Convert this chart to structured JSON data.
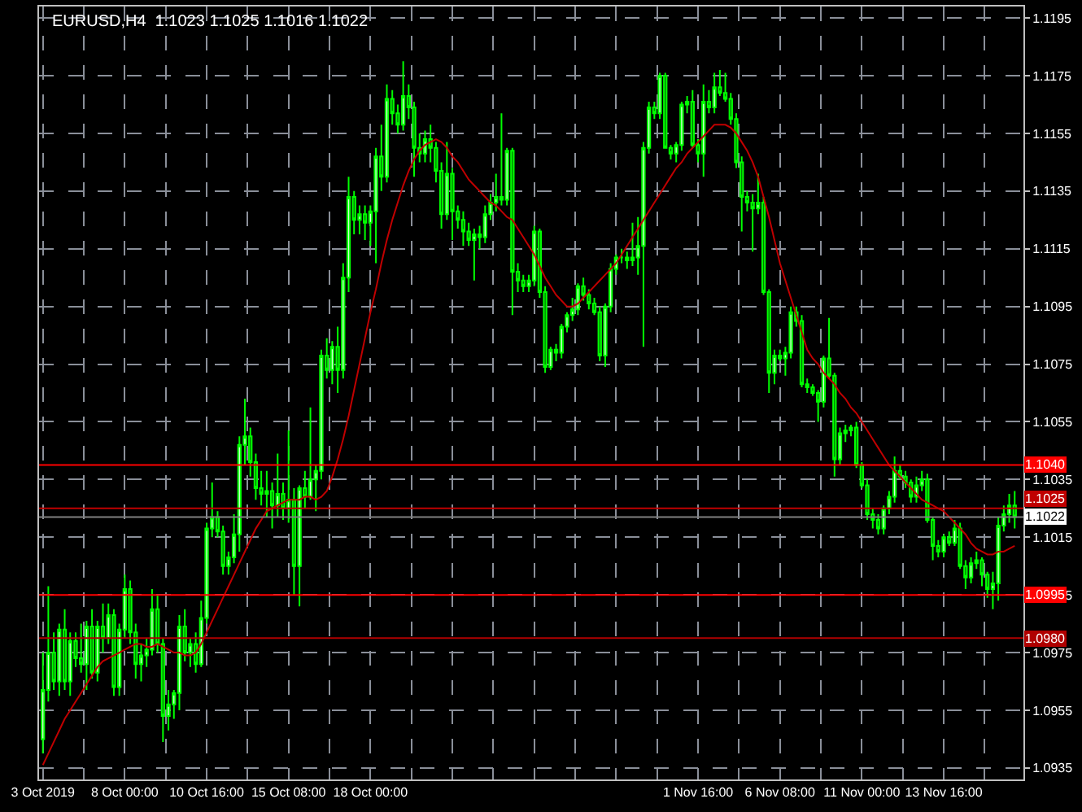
{
  "chart_data": {
    "type": "candlestick",
    "title": "EURUSD,H4  1.1023 1.1025 1.1016 1.1022",
    "categories": [
      "3 Oct 2019",
      null,
      null,
      null,
      null,
      null,
      null,
      null,
      null,
      null,
      null,
      null,
      null,
      null,
      null,
      "8 Oct 00:00",
      null,
      null,
      null,
      null,
      null,
      null,
      null,
      null,
      null,
      null,
      null,
      null,
      null,
      null,
      "10 Oct 16:00",
      null,
      null,
      null,
      null,
      null,
      null,
      null,
      null,
      null,
      null,
      null,
      null,
      null,
      null,
      "15 Oct 08:00",
      null,
      null,
      null,
      null,
      null,
      null,
      null,
      null,
      null,
      null,
      null,
      null,
      null,
      null,
      "18 Oct 00:00",
      null,
      null,
      null,
      null,
      null,
      null,
      null,
      null,
      null,
      null,
      null,
      null,
      null,
      null,
      null,
      null,
      null,
      null,
      null,
      null,
      null,
      null,
      null,
      null,
      null,
      null,
      null,
      null,
      null,
      null,
      null,
      null,
      null,
      null,
      null,
      null,
      null,
      null,
      null,
      null,
      null,
      null,
      null,
      null,
      null,
      null,
      null,
      null,
      null,
      null,
      null,
      null,
      null,
      null,
      null,
      null,
      null,
      null,
      null,
      "1 Nov 16:00",
      null,
      null,
      null,
      null,
      null,
      null,
      null,
      null,
      null,
      null,
      null,
      null,
      null,
      null,
      "6 Nov 08:00",
      null,
      null,
      null,
      null,
      null,
      null,
      null,
      null,
      null,
      null,
      null,
      null,
      null,
      null,
      "11 Nov 00:00",
      null,
      null,
      null,
      null,
      null,
      null,
      null,
      null,
      null,
      null,
      null,
      null,
      null,
      null,
      "13 Nov 16:00",
      null,
      null,
      null,
      null,
      null,
      null,
      null,
      null,
      null,
      null,
      null,
      null,
      null
    ],
    "series": [
      {
        "type": "candlestick",
        "color": "#00ff00",
        "ohlc": [
          [
            1.0945,
            1.0975,
            1.094,
            1.0962
          ],
          [
            1.0962,
            1.0998,
            1.0958,
            1.0975
          ],
          [
            1.0975,
            1.0982,
            1.0962,
            1.0965
          ],
          [
            1.0965,
            1.0985,
            1.096,
            1.0983
          ],
          [
            1.0983,
            1.099,
            1.0962,
            1.0965
          ],
          [
            1.0965,
            1.0982,
            1.096,
            1.0979
          ],
          [
            1.0979,
            1.0982,
            1.097,
            1.0973
          ],
          [
            1.0973,
            1.0985,
            1.0968,
            1.0971
          ],
          [
            1.0971,
            1.0986,
            1.0962,
            1.0984
          ],
          [
            1.0984,
            1.099,
            1.0966,
            1.0968
          ],
          [
            1.0968,
            1.0986,
            1.0965,
            1.0984
          ],
          [
            1.0984,
            1.0992,
            1.0975,
            1.098
          ],
          [
            1.098,
            1.0992,
            1.0978,
            1.0988
          ],
          [
            1.0988,
            1.099,
            1.096,
            1.0963
          ],
          [
            1.0963,
            1.0985,
            1.096,
            1.0983
          ],
          [
            1.0983,
            1.1002,
            1.098,
            1.0997
          ],
          [
            1.0997,
            1.1,
            1.0978,
            1.0982
          ],
          [
            1.0982,
            1.0985,
            1.0966,
            1.0971
          ],
          [
            1.0971,
            1.0978,
            1.0965,
            1.0974
          ],
          [
            1.0974,
            1.098,
            1.097,
            1.0976
          ],
          [
            1.0976,
            1.0997,
            1.0974,
            1.099
          ],
          [
            1.099,
            1.0995,
            1.0975,
            1.0978
          ],
          [
            1.0978,
            1.098,
            1.0944,
            1.0953
          ],
          [
            1.0953,
            1.0962,
            1.0948,
            1.0957
          ],
          [
            1.0957,
            1.0962,
            1.0952,
            1.0961
          ],
          [
            1.0961,
            1.0988,
            1.0955,
            1.0984
          ],
          [
            1.0984,
            1.099,
            1.0972,
            1.0975
          ],
          [
            1.0975,
            1.098,
            1.097,
            1.0978
          ],
          [
            1.0978,
            1.0982,
            1.0968,
            1.0971
          ],
          [
            1.0971,
            1.0993,
            1.097,
            1.0987
          ],
          [
            1.0987,
            1.102,
            1.0985,
            1.1018
          ],
          [
            1.1018,
            1.1034,
            1.1015,
            1.1022
          ],
          [
            1.1022,
            1.1024,
            1.1015,
            1.1017
          ],
          [
            1.1017,
            1.1019,
            1.1002,
            1.1005
          ],
          [
            1.1005,
            1.101,
            1.1002,
            1.1008
          ],
          [
            1.1008,
            1.1023,
            1.1006,
            1.1016
          ],
          [
            1.1016,
            1.105,
            1.101,
            1.1047
          ],
          [
            1.1047,
            1.1063,
            1.104,
            1.105
          ],
          [
            1.105,
            1.1053,
            1.1036,
            1.1041
          ],
          [
            1.1041,
            1.1044,
            1.1028,
            1.1032
          ],
          [
            1.1032,
            1.1038,
            1.1026,
            1.103
          ],
          [
            1.103,
            1.1038,
            1.1022,
            1.1031
          ],
          [
            1.1031,
            1.1034,
            1.1018,
            1.1026
          ],
          [
            1.1026,
            1.1044,
            1.1022,
            1.103
          ],
          [
            1.103,
            1.1034,
            1.1021,
            1.1025
          ],
          [
            1.1025,
            1.1052,
            1.102,
            1.1028
          ],
          [
            1.1028,
            1.1032,
            1.0995,
            1.1005
          ],
          [
            1.1005,
            1.1033,
            1.0991,
            1.1032
          ],
          [
            1.1032,
            1.1038,
            1.1025,
            1.1029
          ],
          [
            1.1029,
            1.106,
            1.1028,
            1.1035
          ],
          [
            1.1035,
            1.104,
            1.1024,
            1.1038
          ],
          [
            1.1038,
            1.108,
            1.1035,
            1.1078
          ],
          [
            1.1078,
            1.1084,
            1.107,
            1.1073
          ],
          [
            1.1073,
            1.1083,
            1.1068,
            1.1081
          ],
          [
            1.1081,
            1.1088,
            1.1065,
            1.1073
          ],
          [
            1.1073,
            1.111,
            1.107,
            1.1105
          ],
          [
            1.1105,
            1.114,
            1.11,
            1.1133
          ],
          [
            1.1133,
            1.1135,
            1.112,
            1.1125
          ],
          [
            1.1125,
            1.113,
            1.112,
            1.1127
          ],
          [
            1.1127,
            1.113,
            1.1118,
            1.1124
          ],
          [
            1.1124,
            1.113,
            1.1116,
            1.1128
          ],
          [
            1.1128,
            1.115,
            1.111,
            1.1147
          ],
          [
            1.1147,
            1.1158,
            1.1135,
            1.114
          ],
          [
            1.114,
            1.1172,
            1.1138,
            1.1167
          ],
          [
            1.1167,
            1.117,
            1.1158,
            1.1162
          ],
          [
            1.1162,
            1.1165,
            1.1155,
            1.1158
          ],
          [
            1.1158,
            1.118,
            1.1156,
            1.1168
          ],
          [
            1.1168,
            1.1172,
            1.116,
            1.1164
          ],
          [
            1.1164,
            1.1166,
            1.114,
            1.115
          ],
          [
            1.115,
            1.1155,
            1.1145,
            1.1148
          ],
          [
            1.1148,
            1.1156,
            1.1145,
            1.1153
          ],
          [
            1.1153,
            1.1158,
            1.1145,
            1.115
          ],
          [
            1.115,
            1.1152,
            1.1138,
            1.1142
          ],
          [
            1.1142,
            1.1145,
            1.1122,
            1.1127
          ],
          [
            1.1127,
            1.1152,
            1.1125,
            1.1141
          ],
          [
            1.1141,
            1.1143,
            1.1118,
            1.1128
          ],
          [
            1.1128,
            1.113,
            1.1122,
            1.1125
          ],
          [
            1.1125,
            1.1128,
            1.1116,
            1.1121
          ],
          [
            1.1121,
            1.1124,
            1.1116,
            1.1118
          ],
          [
            1.1118,
            1.1122,
            1.1104,
            1.112
          ],
          [
            1.112,
            1.1123,
            1.1115,
            1.1119
          ],
          [
            1.1119,
            1.113,
            1.1117,
            1.1127
          ],
          [
            1.1127,
            1.1134,
            1.1125,
            1.1131
          ],
          [
            1.1131,
            1.1141,
            1.1128,
            1.1133
          ],
          [
            1.1133,
            1.1162,
            1.113,
            1.1132
          ],
          [
            1.1132,
            1.115,
            1.113,
            1.1149
          ],
          [
            1.1149,
            1.115,
            1.1092,
            1.1107
          ],
          [
            1.1107,
            1.111,
            1.11,
            1.1104
          ],
          [
            1.1104,
            1.1106,
            1.11,
            1.1102
          ],
          [
            1.1102,
            1.1106,
            1.11,
            1.1104
          ],
          [
            1.1104,
            1.1123,
            1.1102,
            1.1121
          ],
          [
            1.1121,
            1.1122,
            1.1098,
            1.11
          ],
          [
            1.11,
            1.1102,
            1.1072,
            1.1074
          ],
          [
            1.1074,
            1.1081,
            1.1073,
            1.108
          ],
          [
            1.108,
            1.1082,
            1.1076,
            1.1079
          ],
          [
            1.1079,
            1.1089,
            1.1077,
            1.1088
          ],
          [
            1.1088,
            1.1093,
            1.1086,
            1.1092
          ],
          [
            1.1092,
            1.1098,
            1.109,
            1.1094
          ],
          [
            1.1094,
            1.1103,
            1.1092,
            1.1102
          ],
          [
            1.1102,
            1.1105,
            1.1097,
            1.1099
          ],
          [
            1.1099,
            1.1101,
            1.1094,
            1.1096
          ],
          [
            1.1096,
            1.1098,
            1.1092,
            1.1093
          ],
          [
            1.1093,
            1.1095,
            1.1076,
            1.1078
          ],
          [
            1.1078,
            1.1096,
            1.1074,
            1.1095
          ],
          [
            1.1095,
            1.111,
            1.1093,
            1.1108
          ],
          [
            1.1108,
            1.1113,
            1.1106,
            1.1112
          ],
          [
            1.1112,
            1.1115,
            1.111,
            1.1112
          ],
          [
            1.1112,
            1.1114,
            1.1108,
            1.1111
          ],
          [
            1.1111,
            1.1124,
            1.1109,
            1.1112
          ],
          [
            1.1112,
            1.1126,
            1.1106,
            1.1116
          ],
          [
            1.1116,
            1.1152,
            1.1081,
            1.115
          ],
          [
            1.115,
            1.1166,
            1.1148,
            1.1164
          ],
          [
            1.1164,
            1.1166,
            1.116,
            1.1162
          ],
          [
            1.1162,
            1.1176,
            1.116,
            1.1175
          ],
          [
            1.1175,
            1.1176,
            1.115,
            1.115
          ],
          [
            1.115,
            1.1151,
            1.1146,
            1.1148
          ],
          [
            1.1148,
            1.1152,
            1.1145,
            1.1151
          ],
          [
            1.1151,
            1.1166,
            1.1149,
            1.1165
          ],
          [
            1.1165,
            1.1168,
            1.1162,
            1.1166
          ],
          [
            1.1166,
            1.117,
            1.115,
            1.1151
          ],
          [
            1.1151,
            1.1153,
            1.1145,
            1.1148
          ],
          [
            1.1148,
            1.1172,
            1.114,
            1.1166
          ],
          [
            1.1166,
            1.117,
            1.1162,
            1.1164
          ],
          [
            1.1164,
            1.1176,
            1.1162,
            1.1171
          ],
          [
            1.1171,
            1.1177,
            1.1168,
            1.1169
          ],
          [
            1.1169,
            1.1176,
            1.1166,
            1.1167
          ],
          [
            1.1167,
            1.1169,
            1.1158,
            1.116
          ],
          [
            1.116,
            1.1162,
            1.1143,
            1.1145
          ],
          [
            1.1145,
            1.1147,
            1.1121,
            1.1133
          ],
          [
            1.1133,
            1.1135,
            1.1128,
            1.1131
          ],
          [
            1.1131,
            1.1134,
            1.1114,
            1.1129
          ],
          [
            1.1129,
            1.1141,
            1.1127,
            1.1131
          ],
          [
            1.1131,
            1.1133,
            1.1099,
            1.11
          ],
          [
            1.11,
            1.1101,
            1.1065,
            1.1072
          ],
          [
            1.1072,
            1.108,
            1.1068,
            1.1078
          ],
          [
            1.1078,
            1.108,
            1.1076,
            1.1077
          ],
          [
            1.1077,
            1.1081,
            1.1071,
            1.1079
          ],
          [
            1.1079,
            1.1095,
            1.1077,
            1.1093
          ],
          [
            1.1093,
            1.1095,
            1.1088,
            1.109
          ],
          [
            1.109,
            1.1092,
            1.1067,
            1.1068
          ],
          [
            1.1068,
            1.107,
            1.1065,
            1.1067
          ],
          [
            1.1067,
            1.1068,
            1.1064,
            1.1065
          ],
          [
            1.1065,
            1.1066,
            1.1055,
            1.1062
          ],
          [
            1.1062,
            1.1078,
            1.106,
            1.1077
          ],
          [
            1.1077,
            1.1091,
            1.107,
            1.1071
          ],
          [
            1.1071,
            1.1072,
            1.1036,
            1.1042
          ],
          [
            1.1042,
            1.1053,
            1.104,
            1.1051
          ],
          [
            1.1051,
            1.1054,
            1.1048,
            1.1052
          ],
          [
            1.1052,
            1.1054,
            1.105,
            1.1053
          ],
          [
            1.1053,
            1.1055,
            1.1039,
            1.104
          ],
          [
            1.104,
            1.1041,
            1.1032,
            1.1033
          ],
          [
            1.1033,
            1.1035,
            1.1021,
            1.1023
          ],
          [
            1.1023,
            1.1025,
            1.1018,
            1.1021
          ],
          [
            1.1021,
            1.1023,
            1.1016,
            1.1018
          ],
          [
            1.1018,
            1.1026,
            1.1016,
            1.1025
          ],
          [
            1.1025,
            1.1031,
            1.1023,
            1.1029
          ],
          [
            1.1029,
            1.1043,
            1.1027,
            1.1038
          ],
          [
            1.1038,
            1.104,
            1.1035,
            1.1036
          ],
          [
            1.1036,
            1.1038,
            1.1032,
            1.1034
          ],
          [
            1.1034,
            1.1035,
            1.1027,
            1.1029
          ],
          [
            1.1029,
            1.1036,
            1.1027,
            1.1033
          ],
          [
            1.1033,
            1.1038,
            1.1031,
            1.1035
          ],
          [
            1.1035,
            1.1037,
            1.102,
            1.1021
          ],
          [
            1.1021,
            1.1022,
            1.1007,
            1.1012
          ],
          [
            1.1012,
            1.1014,
            1.1008,
            1.101
          ],
          [
            1.101,
            1.1016,
            1.1008,
            1.1015
          ],
          [
            1.1015,
            1.1017,
            1.1012,
            1.1013
          ],
          [
            1.1013,
            1.1021,
            1.1012,
            1.1018
          ],
          [
            1.1018,
            1.102,
            1.1004,
            1.1005
          ],
          [
            1.1005,
            1.1007,
            1.0997,
            1.1001
          ],
          [
            1.1001,
            1.1008,
            1.0999,
            1.1006
          ],
          [
            1.1006,
            1.101,
            1.1004,
            1.1007
          ],
          [
            1.1007,
            1.1008,
            1.0998,
            1.1002
          ],
          [
            1.1002,
            1.1003,
            1.0994,
            1.0997
          ],
          [
            1.0997,
            1.1003,
            1.099,
            1.0999
          ],
          [
            1.0999,
            1.1022,
            1.0993,
            1.1019
          ],
          [
            1.1019,
            1.1026,
            1.1017,
            1.1023
          ],
          [
            1.1023,
            1.103,
            1.102,
            1.1026
          ],
          [
            1.1026,
            1.1031,
            1.1018,
            1.1022
          ]
        ]
      },
      {
        "type": "line",
        "color": "#c00000",
        "values": [
          1.0936,
          1.094,
          1.0944,
          1.0948,
          1.0952,
          1.0955,
          1.0958,
          1.0961,
          1.0964,
          1.0967,
          1.097,
          1.0972,
          1.0973,
          1.0974,
          1.0975,
          1.0976,
          1.0977,
          1.0978,
          1.0978,
          1.0977,
          1.0977,
          1.0978,
          1.0977,
          1.0976,
          1.0975,
          1.0975,
          1.0974,
          1.0974,
          1.0975,
          1.0978,
          1.0982,
          1.0986,
          1.099,
          1.0994,
          1.0998,
          1.1002,
          1.1006,
          1.101,
          1.1014,
          1.1018,
          1.1021,
          1.1024,
          1.1025,
          1.1026,
          1.1027,
          1.1028,
          1.1028,
          1.1028,
          1.1029,
          1.1029,
          1.1028,
          1.1029,
          1.1031,
          1.1036,
          1.1042,
          1.1049,
          1.1057,
          1.1066,
          1.1075,
          1.1084,
          1.1093,
          1.1101,
          1.111,
          1.1118,
          1.1125,
          1.1131,
          1.1137,
          1.1142,
          1.1146,
          1.1149,
          1.1151,
          1.1152,
          1.1153,
          1.1152,
          1.115,
          1.1147,
          1.1145,
          1.1142,
          1.1139,
          1.1137,
          1.1135,
          1.1133,
          1.1131,
          1.113,
          1.1128,
          1.1126,
          1.1125,
          1.1122,
          1.1119,
          1.1116,
          1.1113,
          1.1109,
          1.1105,
          1.1102,
          1.1099,
          1.1097,
          1.1095,
          1.1095,
          1.1096,
          1.1098,
          1.11,
          1.1102,
          1.1104,
          1.1106,
          1.1108,
          1.111,
          1.1113,
          1.1116,
          1.1119,
          1.1122,
          1.1125,
          1.1128,
          1.1131,
          1.1134,
          1.1137,
          1.114,
          1.1143,
          1.1145,
          1.1148,
          1.115,
          1.1152,
          1.1154,
          1.1156,
          1.1158,
          1.1158,
          1.1158,
          1.1157,
          1.1155,
          1.1152,
          1.1149,
          1.1145,
          1.114,
          1.1133,
          1.1126,
          1.1118,
          1.111,
          1.1104,
          1.1098,
          1.1092,
          1.1086,
          1.108,
          1.1077,
          1.1075,
          1.1072,
          1.107,
          1.1068,
          1.1065,
          1.1063,
          1.106,
          1.1058,
          1.1055,
          1.1052,
          1.1049,
          1.1046,
          1.1043,
          1.104,
          1.1038,
          1.1036,
          1.1034,
          1.1032,
          1.103,
          1.1028,
          1.1027,
          1.1026,
          1.1025,
          1.1024,
          1.1022,
          1.102,
          1.1018,
          1.1016,
          1.1013,
          1.1011,
          1.101,
          1.1009,
          1.1009,
          1.101,
          1.101,
          1.1011,
          1.1012
        ]
      }
    ],
    "ylim": [
      1.0931,
      1.1199
    ],
    "yticks": [
      1.0935,
      1.0955,
      1.0975,
      1.0995,
      1.1015,
      1.1035,
      1.1055,
      1.1075,
      1.1095,
      1.1115,
      1.1135,
      1.1155,
      1.1175,
      1.1195
    ],
    "ref_lines": [
      {
        "axis": "y",
        "value": 1.104,
        "label": "1.1040",
        "color": "#ff0000"
      },
      {
        "axis": "y",
        "value": 1.1025,
        "label": "1.1025",
        "color": "#c00000"
      },
      {
        "axis": "y",
        "value": 1.0995,
        "label": "1.0995",
        "color": "#ff0000"
      },
      {
        "axis": "y",
        "value": 1.098,
        "label": "1.0980",
        "color": "#b00000"
      },
      {
        "axis": "y",
        "value": 1.1022,
        "label": "1.1022",
        "color": "#808080"
      }
    ],
    "grid": true
  }
}
